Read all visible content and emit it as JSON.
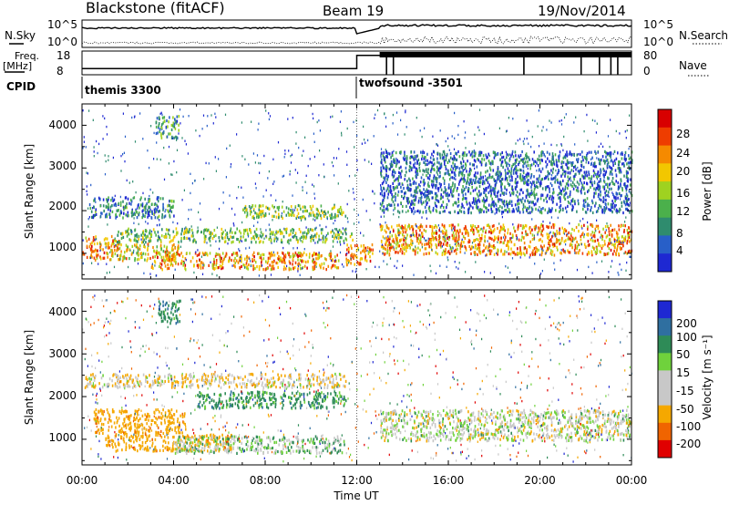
{
  "header": {
    "title": "Blackstone (fitACF)",
    "beam": "Beam 19",
    "date": "19/Nov/2014"
  },
  "strip_labels": {
    "nsky": "N.Sky",
    "nsearch": "N.Search",
    "freq": "Freq.",
    "freq_unit": "[MHz]",
    "nave": "Nave",
    "cpid": "CPID"
  },
  "strip_ticks": {
    "noise_top": "10^5",
    "noise_bottom": "10^0",
    "freq_top": "18",
    "freq_bottom": "8",
    "nave_top": "80",
    "nave_bottom": "0"
  },
  "cpid_segments": [
    {
      "label": "themis 3300",
      "start_hour": 0
    },
    {
      "label": "twofsound -3501",
      "start_hour": 12.0
    }
  ],
  "frequency_trace": [
    {
      "hour": 0,
      "mhz": 10.6
    },
    {
      "hour": 12.0,
      "mhz": 10.6
    },
    {
      "hour": 12.0,
      "mhz": 16.2
    },
    {
      "hour": 24,
      "mhz": 16.2
    }
  ],
  "x_axis": {
    "label": "Time UT",
    "ticks": [
      "00:00",
      "04:00",
      "08:00",
      "12:00",
      "16:00",
      "20:00",
      "00:00"
    ],
    "range_hours": [
      0,
      24
    ]
  },
  "panels": {
    "power": {
      "ylabel": "Slant Range [km]",
      "yticks": [
        "1000",
        "2000",
        "3000",
        "4000"
      ],
      "colorbar_label": "Power [dB]",
      "colorbar_ticks": [
        "4",
        "8",
        "12",
        "16",
        "20",
        "24",
        "28"
      ],
      "colors": [
        "#1e28d2",
        "#285fc8",
        "#2f8c6e",
        "#4bb04b",
        "#9fd220",
        "#f2c700",
        "#f58a00",
        "#ee3d00",
        "#d80000"
      ]
    },
    "velocity": {
      "ylabel": "Slant Range [km]",
      "yticks": [
        "1000",
        "2000",
        "3000",
        "4000"
      ],
      "colorbar_label": "Velocity [m s⁻¹]",
      "colorbar_ticks": [
        "200",
        "100",
        "50",
        "15",
        "-15",
        "-50",
        "-100",
        "-200"
      ],
      "colors": [
        "#1e28d2",
        "#2f6fa0",
        "#2e8b57",
        "#6fd23c",
        "#c8c8c8",
        "#c8c8c8",
        "#f5a800",
        "#f06400",
        "#e00000"
      ]
    }
  },
  "chart_data": {
    "type": "heatmap",
    "x_unit": "hours UT",
    "y_unit": "km",
    "xlim": [
      0,
      24
    ],
    "ylim": [
      400,
      4500
    ],
    "power_regions": [
      {
        "hour_start": 0.0,
        "hour_end": 1.6,
        "range_center_km": 1150,
        "width_km": 350,
        "power_db": 22
      },
      {
        "hour_start": 1.6,
        "hour_end": 4.2,
        "range_center_km": 1050,
        "width_km": 250,
        "power_db": 18
      },
      {
        "hour_start": 1.5,
        "hour_end": 11.8,
        "range_center_km": 1450,
        "width_km": 200,
        "power_db": 14
      },
      {
        "hour_start": 3.0,
        "hour_end": 11.2,
        "range_center_km": 850,
        "width_km": 250,
        "power_db": 22
      },
      {
        "hour_start": 7.0,
        "hour_end": 11.5,
        "range_center_km": 2000,
        "width_km": 200,
        "power_db": 14
      },
      {
        "hour_start": 0.3,
        "hour_end": 4.0,
        "range_center_km": 2100,
        "width_km": 300,
        "power_db": 8
      },
      {
        "hour_start": 3.2,
        "hour_end": 4.2,
        "range_center_km": 4000,
        "width_km": 350,
        "power_db": 10
      },
      {
        "hour_start": 11.5,
        "hour_end": 12.7,
        "range_center_km": 1000,
        "width_km": 300,
        "power_db": 24
      },
      {
        "hour_start": 13.0,
        "hour_end": 24.0,
        "range_center_km": 1350,
        "width_km": 450,
        "power_db": 22
      },
      {
        "hour_start": 13.0,
        "hour_end": 24.0,
        "range_center_km": 2700,
        "width_km": 900,
        "power_db": 6
      }
    ],
    "velocity_regions": [
      {
        "hour_start": 0.5,
        "hour_end": 4.5,
        "range_center_km": 1450,
        "width_km": 350,
        "velocity_ms": -50
      },
      {
        "hour_start": 1.0,
        "hour_end": 6.5,
        "range_center_km": 950,
        "width_km": 250,
        "velocity_ms": -50
      },
      {
        "hour_start": 5.0,
        "hour_end": 11.5,
        "range_center_km": 1950,
        "width_km": 250,
        "velocity_ms": 50
      },
      {
        "hour_start": 0.0,
        "hour_end": 11.5,
        "range_center_km": 2400,
        "width_km": 200,
        "velocity_ms": -10
      },
      {
        "hour_start": 4.0,
        "hour_end": 11.5,
        "range_center_km": 900,
        "width_km": 250,
        "velocity_ms": 20
      },
      {
        "hour_start": 3.3,
        "hour_end": 4.3,
        "range_center_km": 4000,
        "width_km": 350,
        "velocity_ms": 60
      },
      {
        "hour_start": 13.0,
        "hour_end": 24.0,
        "range_center_km": 1350,
        "width_km": 450,
        "velocity_ms": 5
      }
    ]
  }
}
